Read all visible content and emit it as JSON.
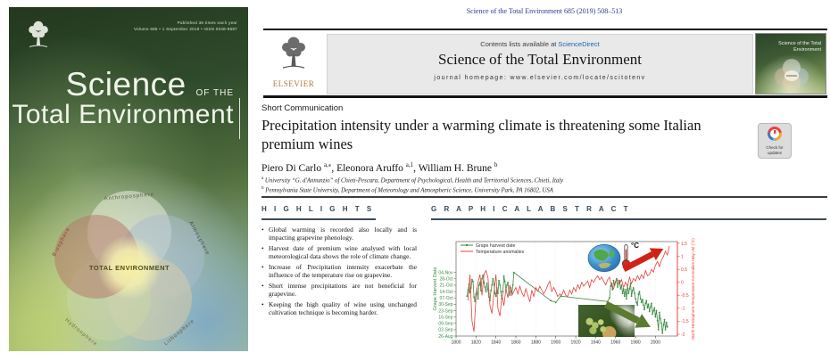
{
  "citation": "Science of the Total Environment 685 (2019) 508–513",
  "header": {
    "contents_prefix": "Contents lists available at ",
    "sciencedirect": "ScienceDirect",
    "journal_title": "Science of the Total Environment",
    "homepage_line": "journal homepage: www.elsevier.com/locate/scitotenv",
    "elsevier_label": "ELSEVIER",
    "thumbnail_title": "Science of the Total Environment"
  },
  "article": {
    "type_label": "Short Communication",
    "title": "Precipitation intensity under a warming climate is threatening some Italian premium wines",
    "authors": [
      {
        "name": "Piero Di Carlo",
        "sup": "a,⁎"
      },
      {
        "name": "Eleonora Aruffo",
        "sup": "a,1"
      },
      {
        "name": "William H. Brune",
        "sup": "b"
      }
    ],
    "affiliations": [
      {
        "sup": "a",
        "text": "University “G. d'Annunzio” of Chieti-Pescara, Department of Psychological, Health and Territorial Sciences, Chieti, Italy"
      },
      {
        "sup": "b",
        "text": "Pennsylvania State University, Department of Meteorology and Atmospheric Science, University Park, PA 16802, USA"
      }
    ],
    "check_badge": "Check for updates"
  },
  "sections": {
    "highlights": "H I G H L I G H T S",
    "graphical_abstract": "G R A P H I C A L   A B S T R A C T"
  },
  "highlights": [
    "Global warming is recorded also locally and is impacting grapevine phenology.",
    "Harvest date of premium wine analysed with local meteorological data shows the role of climate change.",
    "Increase of Precipitation intensity exacerbate the influence of the temperature rise on grapevine.",
    "Short intense precipitations are not beneficial for grapevine.",
    "Keeping the high quality of wine using unchanged cultivation technique is becoming harder."
  ],
  "cover": {
    "title_main": "Science",
    "title_of_the": "OF THE",
    "title_second": "Total Environment",
    "info_line1": "Published 36 times each year",
    "info_line2": "Volume 685 • 1 September 2019 • ISSN 0048-9697",
    "venn_center": "TOTAL ENVIRONMENT",
    "venn_labels": [
      "Anthroposphere",
      "Atmosphere",
      "Lithosphere",
      "Hydrosphere",
      "Biosphere"
    ]
  },
  "chart_data": {
    "type": "line",
    "celsius_label": "°C",
    "x_axis": {
      "ticks": [
        1800,
        1820,
        1840,
        1860,
        1880,
        1900,
        1920,
        1940,
        1960,
        1980,
        2000
      ],
      "lim": [
        1800,
        2022
      ]
    },
    "left_axis": {
      "label": "Grape Harvest Date",
      "color": "#3c8a44",
      "tick_days": [
        0,
        7,
        14,
        21,
        28,
        35,
        42,
        49,
        56,
        63,
        70
      ],
      "tick_labels": [
        "26-Aug",
        "02-Sep",
        "09-Sep",
        "16-Sep",
        "23-Sep",
        "30-Sep",
        "07-Oct",
        "14-Oct",
        "21-Oct",
        "28-Oct",
        "04-Nov"
      ],
      "lim": [
        0,
        104
      ]
    },
    "right_axis": {
      "label": "North Hemisphere Temperature Anomalies May-Jul (°C)",
      "color": "#e8403a",
      "ticks": [
        1.5,
        1,
        0.5,
        0,
        -0.5,
        -1,
        -1.5,
        -2
      ],
      "lim": [
        -2.07,
        1.57
      ]
    },
    "legend": [
      {
        "label": "Grape harvest date",
        "color": "#3c8a44"
      },
      {
        "label": "Temperature anomalies",
        "color": "#e8403a"
      }
    ],
    "series": [
      {
        "name": "Grape harvest date",
        "axis": "left",
        "color": "#3c8a44",
        "markers": true,
        "points": [
          [
            1811,
            44
          ],
          [
            1812,
            50
          ],
          [
            1813,
            57
          ],
          [
            1814,
            48
          ],
          [
            1815,
            53
          ],
          [
            1816,
            62
          ],
          [
            1817,
            60
          ],
          [
            1818,
            43
          ],
          [
            1819,
            38
          ],
          [
            1820,
            46
          ],
          [
            1821,
            52
          ],
          [
            1822,
            41
          ],
          [
            1823,
            56
          ],
          [
            1824,
            59
          ],
          [
            1825,
            50
          ],
          [
            1826,
            63
          ],
          [
            1827,
            67
          ],
          [
            1828,
            59
          ],
          [
            1829,
            54
          ],
          [
            1830,
            49
          ],
          [
            1831,
            58
          ],
          [
            1832,
            51
          ],
          [
            1833,
            43
          ],
          [
            1834,
            39
          ],
          [
            1835,
            50
          ],
          [
            1836,
            56
          ],
          [
            1837,
            63
          ],
          [
            1838,
            57
          ],
          [
            1839,
            47
          ],
          [
            1840,
            44
          ],
          [
            1841,
            53
          ],
          [
            1842,
            47
          ],
          [
            1843,
            61
          ],
          [
            1844,
            56
          ],
          [
            1845,
            49
          ],
          [
            1846,
            41
          ],
          [
            1847,
            49
          ],
          [
            1848,
            66
          ],
          [
            1849,
            60
          ],
          [
            1850,
            51
          ],
          [
            1851,
            56
          ],
          [
            1852,
            59
          ],
          [
            1853,
            49
          ],
          [
            1854,
            45
          ],
          [
            1855,
            53
          ],
          [
            1856,
            47
          ],
          [
            1857,
            56
          ],
          [
            1858,
            70
          ],
          [
            1895,
            39
          ],
          [
            1900,
            37
          ],
          [
            1905,
            44
          ],
          [
            1952,
            38
          ],
          [
            1954,
            42
          ],
          [
            1955,
            55
          ],
          [
            1956,
            58
          ],
          [
            1957,
            51
          ],
          [
            1958,
            61
          ],
          [
            1959,
            56
          ],
          [
            1960,
            59
          ],
          [
            1961,
            63
          ],
          [
            1962,
            54
          ],
          [
            1963,
            58
          ],
          [
            1964,
            61
          ],
          [
            1965,
            52
          ],
          [
            1966,
            56
          ],
          [
            1967,
            47
          ],
          [
            1968,
            52
          ],
          [
            1969,
            44
          ],
          [
            1970,
            51
          ],
          [
            1971,
            41
          ],
          [
            1972,
            56
          ],
          [
            1973,
            47
          ],
          [
            1974,
            52
          ],
          [
            1975,
            58
          ],
          [
            1976,
            44
          ],
          [
            1977,
            50
          ],
          [
            1978,
            53
          ],
          [
            1979,
            47
          ],
          [
            1980,
            41
          ],
          [
            1981,
            37
          ],
          [
            1982,
            34
          ],
          [
            1983,
            46
          ],
          [
            1984,
            49
          ],
          [
            1985,
            41
          ],
          [
            1986,
            37
          ],
          [
            1987,
            40
          ],
          [
            1988,
            34
          ],
          [
            1989,
            29
          ],
          [
            1990,
            36
          ],
          [
            1991,
            39
          ],
          [
            1992,
            31
          ],
          [
            1993,
            35
          ],
          [
            1994,
            27
          ],
          [
            1995,
            32
          ],
          [
            1996,
            36
          ],
          [
            1997,
            24
          ],
          [
            1998,
            28
          ],
          [
            1999,
            31
          ],
          [
            2000,
            21
          ],
          [
            2001,
            28
          ],
          [
            2002,
            17
          ],
          [
            2003,
            7
          ],
          [
            2004,
            26
          ],
          [
            2005,
            19
          ],
          [
            2006,
            14
          ],
          [
            2007,
            3
          ],
          [
            2008,
            12
          ],
          [
            2009,
            18
          ],
          [
            2010,
            7
          ],
          [
            2011,
            15
          ],
          [
            2012,
            10
          ]
        ]
      },
      {
        "name": "Temperature anomalies",
        "axis": "right",
        "color": "#e8403a",
        "markers": false,
        "start": 1812,
        "step": 2,
        "values": [
          -0.7,
          0.3,
          -1.5,
          -1.9,
          -0.6,
          0.0,
          0.3,
          -0.5,
          0.3,
          0.45,
          0.2,
          -0.9,
          -1.2,
          -0.4,
          0.3,
          -1.0,
          -1.3,
          -0.5,
          -0.9,
          -0.25,
          -0.6,
          -0.1,
          -0.5,
          -0.35,
          -0.2,
          -0.45,
          -0.15,
          -0.4,
          -0.55,
          -0.25,
          -0.5,
          -0.75,
          -0.3,
          -0.55,
          -0.2,
          -0.35,
          -0.15,
          -0.3,
          -0.45,
          -0.3,
          -0.1,
          0.05,
          -0.35,
          -0.2,
          -0.35,
          -0.55,
          -0.45,
          -0.5,
          -0.3,
          -0.5,
          -0.55,
          -0.3,
          -0.45,
          -0.2,
          -0.35,
          -0.1,
          -0.25,
          0.0,
          -0.15,
          -0.05,
          0.05,
          -0.2,
          0.1,
          0.0,
          0.15,
          0.25,
          0.1,
          0.2,
          0.05,
          -0.1,
          0.1,
          0.2,
          -0.15,
          -0.25,
          0.05,
          0.1,
          -0.05,
          0.1,
          -0.2,
          0.0,
          -0.15,
          0.2,
          -0.05,
          0.15,
          0.05,
          0.25,
          0.1,
          0.3,
          0.15,
          0.45,
          0.25,
          0.3,
          0.5,
          0.4,
          0.65,
          0.8,
          0.6,
          0.85,
          1.0,
          1.2,
          1.05,
          1.4
        ]
      }
    ],
    "annotations": [
      "globe",
      "thermometer",
      "warming-up-arrow",
      "harvest-earlier-arrow",
      "grapevine-photo"
    ]
  }
}
